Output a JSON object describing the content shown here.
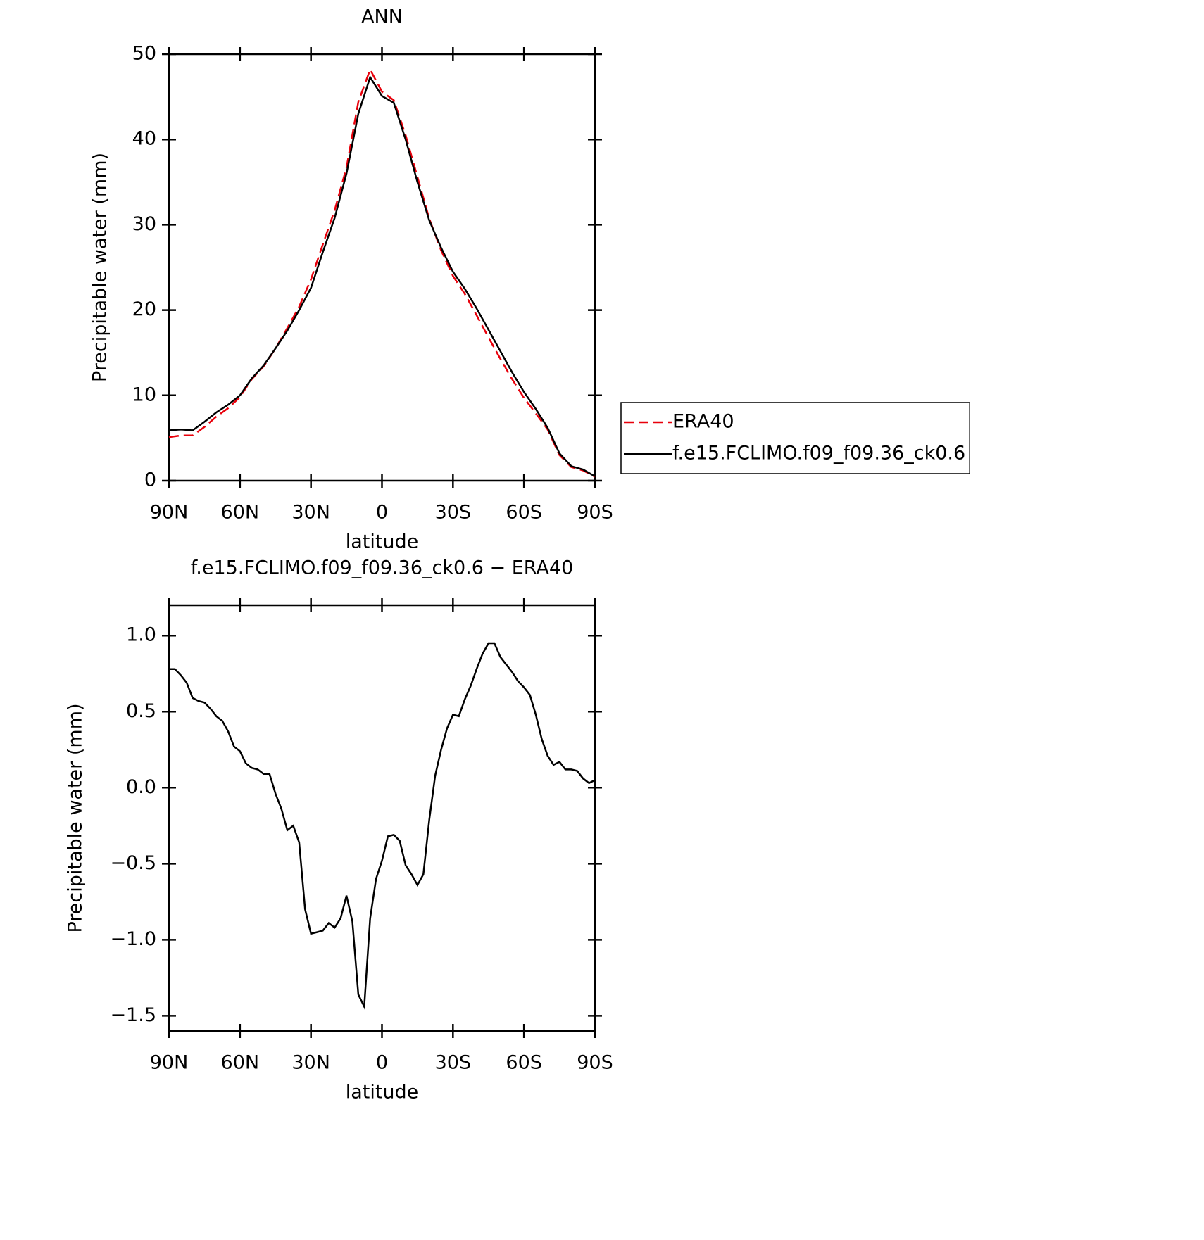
{
  "chart_data": [
    {
      "type": "line",
      "title": "ANN",
      "x_label": "latitude",
      "y_label": "Precipitable water (mm)",
      "x": [
        90,
        85,
        80,
        75,
        70,
        65,
        60,
        55,
        50,
        45,
        40,
        35,
        30,
        25,
        20,
        15,
        10,
        5,
        0,
        -5,
        -10,
        -15,
        -20,
        -25,
        -30,
        -35,
        -40,
        -45,
        -50,
        -55,
        -60,
        -65,
        -70,
        -75,
        -80,
        -85,
        -90
      ],
      "series": [
        {
          "name": "ERA40",
          "color": "#e8000b",
          "dash": true,
          "values": [
            5.1,
            5.3,
            5.3,
            6.3,
            7.5,
            8.5,
            9.8,
            11.9,
            13.4,
            15.5,
            17.9,
            20.4,
            23.6,
            27.7,
            31.7,
            36.7,
            44.4,
            48.2,
            45.6,
            44.6,
            40.5,
            35.6,
            30.7,
            27.0,
            24.0,
            21.9,
            19.4,
            16.8,
            14.3,
            11.9,
            9.7,
            7.9,
            6.0,
            3.0,
            1.6,
            1.2,
            0.45
          ]
        },
        {
          "name": "f.e15.FCLIMO.f09_f09.36_ck0.6",
          "color": "#000000",
          "dash": false,
          "values": [
            5.9,
            6.0,
            5.9,
            6.9,
            8.0,
            8.9,
            10.0,
            12.0,
            13.5,
            15.5,
            17.6,
            20.0,
            22.6,
            26.8,
            30.8,
            36.0,
            43.0,
            47.3,
            45.1,
            44.3,
            40.0,
            35.0,
            30.5,
            27.3,
            24.5,
            22.5,
            20.2,
            17.7,
            15.2,
            12.7,
            10.4,
            8.4,
            6.2,
            3.2,
            1.7,
            1.3,
            0.5
          ]
        }
      ],
      "xlim": [
        90,
        -90
      ],
      "xticks": [
        {
          "value": 90,
          "label": "90N"
        },
        {
          "value": 60,
          "label": "60N"
        },
        {
          "value": 30,
          "label": "30N"
        },
        0,
        {
          "value": -30,
          "label": "30S"
        },
        {
          "value": -60,
          "label": "60S"
        },
        {
          "value": -90,
          "label": "90S"
        }
      ],
      "ylim": [
        0,
        50
      ],
      "yticks": [
        0,
        10,
        20,
        30,
        40,
        50
      ],
      "legend": "right"
    },
    {
      "type": "line",
      "title": "f.e15.FCLIMO.f09_f09.36_ck0.6 − ERA40",
      "x_label": "latitude",
      "y_label": "Precipitable water (mm)",
      "x": [
        90,
        87.5,
        85,
        82.5,
        80,
        77.5,
        75,
        72.5,
        70,
        67.5,
        65,
        62.5,
        60,
        57.5,
        55,
        52.5,
        50,
        47.5,
        45,
        42.5,
        40,
        37.5,
        35,
        32.5,
        30,
        27.5,
        25,
        22.5,
        20,
        17.5,
        15,
        12.5,
        10,
        7.5,
        5,
        2.5,
        0,
        -2.5,
        -5,
        -7.5,
        -10,
        -12.5,
        -15,
        -17.5,
        -20,
        -22.5,
        -25,
        -27.5,
        -30,
        -32.5,
        -35,
        -37.5,
        -40,
        -42.5,
        -45,
        -47.5,
        -50,
        -52.5,
        -55,
        -57.5,
        -60,
        -62.5,
        -65,
        -67.5,
        -70,
        -72.5,
        -75,
        -77.5,
        -80,
        -82.5,
        -85,
        -87.5,
        -90
      ],
      "color": "#000000",
      "values": [
        0.78,
        0.78,
        0.74,
        0.69,
        0.59,
        0.57,
        0.56,
        0.52,
        0.47,
        0.44,
        0.37,
        0.27,
        0.24,
        0.16,
        0.13,
        0.12,
        0.09,
        0.09,
        -0.04,
        -0.14,
        -0.28,
        -0.25,
        -0.36,
        -0.8,
        -0.96,
        -0.95,
        -0.94,
        -0.89,
        -0.92,
        -0.86,
        -0.71,
        -0.88,
        -1.36,
        -1.44,
        -0.86,
        -0.6,
        -0.48,
        -0.32,
        -0.31,
        -0.35,
        -0.51,
        -0.57,
        -0.64,
        -0.57,
        -0.21,
        0.08,
        0.25,
        0.39,
        0.48,
        0.47,
        0.58,
        0.67,
        0.78,
        0.88,
        0.95,
        0.95,
        0.86,
        0.81,
        0.76,
        0.7,
        0.66,
        0.61,
        0.48,
        0.32,
        0.21,
        0.15,
        0.17,
        0.12,
        0.12,
        0.11,
        0.06,
        0.03,
        0.05
      ],
      "xlim": [
        90,
        -90
      ],
      "xticks": [
        {
          "value": 90,
          "label": "90N"
        },
        {
          "value": 60,
          "label": "60N"
        },
        {
          "value": 30,
          "label": "30N"
        },
        0,
        {
          "value": -30,
          "label": "30S"
        },
        {
          "value": -60,
          "label": "60S"
        },
        {
          "value": -90,
          "label": "90S"
        }
      ],
      "ylim": [
        -1.6,
        1.2
      ],
      "yticks": [
        {
          "value": -1.5,
          "label": "−1.5"
        },
        {
          "value": -1,
          "label": "−1.0"
        },
        {
          "value": -0.5,
          "label": "−0.5"
        },
        {
          "value": 0,
          "label": "0.0"
        },
        0.5,
        {
          "value": 1,
          "label": "1.0"
        }
      ]
    }
  ]
}
